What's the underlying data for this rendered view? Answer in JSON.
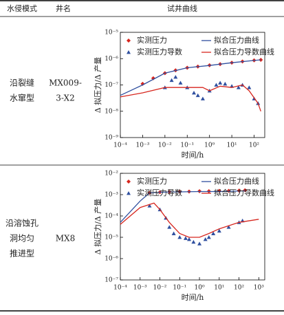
{
  "table": {
    "header": [
      "水侵模式",
      "井名",
      "试井曲线"
    ],
    "rows": [
      {
        "mode": [
          "沿裂缝",
          "水窜型"
        ],
        "well": [
          "MX009-",
          "3-X2"
        ]
      },
      {
        "mode": [
          "沿溶蚀孔",
          "洞均匀",
          "推进型"
        ],
        "well": [
          "MX8"
        ]
      }
    ]
  },
  "chart_data": [
    {
      "type": "scatter",
      "x_label": "时间/h",
      "y_label": "Δ 拟压力/Δ 产量",
      "log_x": true,
      "log_y": true,
      "xlim": [
        0.0001,
        300
      ],
      "ylim": [
        1e-09,
        1e-05
      ],
      "xticks": [
        {
          "value": 0.0001,
          "label": "10⁻⁴"
        },
        {
          "value": 0.001,
          "label": "10⁻³"
        },
        {
          "value": 0.01,
          "label": "10⁻²"
        },
        {
          "value": 0.1,
          "label": "10⁻¹"
        },
        {
          "value": 1,
          "label": "10⁰"
        },
        {
          "value": 10,
          "label": "10¹"
        },
        {
          "value": 100,
          "label": "10²"
        }
      ],
      "yticks": [
        {
          "value": 1e-09,
          "label": "10⁻⁹"
        },
        {
          "value": 1e-08,
          "label": "10⁻⁸"
        },
        {
          "value": 1e-07,
          "label": "10⁻⁷"
        },
        {
          "value": 1e-06,
          "label": "10⁻⁶"
        },
        {
          "value": 1e-05,
          "label": "10⁻⁵"
        }
      ],
      "series": [
        {
          "name": "实测压力",
          "color": "#d7261e",
          "marker": "diamond",
          "x": [
            0.001,
            0.003,
            0.01,
            0.03,
            0.1,
            0.3,
            1,
            3,
            10,
            30,
            100,
            200
          ],
          "values": [
            1.1e-07,
            1.8e-07,
            2.8e-07,
            3.6e-07,
            4.5e-07,
            5e-07,
            5.6e-07,
            6.2e-07,
            7e-07,
            7.8e-07,
            8.6e-07,
            9e-07
          ]
        },
        {
          "name": "拟合压力曲线",
          "color": "#2f4f9f",
          "marker": "line",
          "x": [
            0.0001,
            0.001,
            0.01,
            0.1,
            1,
            10,
            100,
            200
          ],
          "values": [
            4e-08,
            1e-07,
            2.8e-07,
            4.5e-07,
            5.5e-07,
            7e-07,
            8.5e-07,
            9e-07
          ]
        },
        {
          "name": "实测压力导数",
          "color": "#2f4f9f",
          "marker": "triangle",
          "x": [
            0.01,
            0.02,
            0.03,
            0.05,
            0.1,
            0.2,
            0.3,
            0.5,
            1,
            2,
            3,
            5,
            10,
            20,
            30,
            60,
            100,
            150
          ],
          "values": [
            8e-08,
            1.5e-07,
            2e-07,
            1.2e-07,
            8e-08,
            5e-08,
            4e-08,
            3e-08,
            6e-08,
            1e-07,
            1.2e-07,
            1.1e-07,
            9e-08,
            8e-08,
            1e-07,
            8e-08,
            3e-08,
            2e-08
          ]
        },
        {
          "name": "拟合压力导数曲线",
          "color": "#d7261e",
          "marker": "line",
          "x": [
            0.0001,
            0.001,
            0.01,
            0.1,
            0.5,
            1,
            3,
            10,
            30,
            60,
            150,
            200
          ],
          "values": [
            3.5e-08,
            5e-08,
            8e-08,
            8e-08,
            8e-08,
            6e-08,
            9e-08,
            8e-08,
            1e-07,
            6e-08,
            2e-08,
            1e-08
          ]
        }
      ]
    },
    {
      "type": "scatter",
      "x_label": "时间/h",
      "y_label": "Δ 拟压力/Δ 产量",
      "log_x": true,
      "log_y": true,
      "xlim": [
        0.0001,
        2000
      ],
      "ylim": [
        1e-07,
        0.01
      ],
      "xticks": [
        {
          "value": 0.0001,
          "label": "10⁻⁴"
        },
        {
          "value": 0.001,
          "label": "10⁻³"
        },
        {
          "value": 0.01,
          "label": "10⁻²"
        },
        {
          "value": 0.1,
          "label": "10⁻¹"
        },
        {
          "value": 1,
          "label": "10⁰"
        },
        {
          "value": 10,
          "label": "10¹"
        },
        {
          "value": 100,
          "label": "10²"
        },
        {
          "value": 1000,
          "label": "10³"
        }
      ],
      "yticks": [
        {
          "value": 1e-07,
          "label": "10⁻⁷"
        },
        {
          "value": 1e-06,
          "label": "10⁻⁶"
        },
        {
          "value": 1e-05,
          "label": "10⁻⁵"
        },
        {
          "value": 0.0001,
          "label": "10⁻⁴"
        },
        {
          "value": 0.001,
          "label": "10⁻³"
        },
        {
          "value": 0.01,
          "label": "10⁻²"
        }
      ],
      "series": [
        {
          "name": "实测压力",
          "color": "#d7261e",
          "marker": "diamond",
          "x": [
            0.003,
            0.01,
            0.03,
            0.1,
            0.3,
            1,
            3,
            10,
            30,
            100,
            200
          ],
          "values": [
            0.0012,
            0.0013,
            0.00135,
            0.0014,
            0.0014,
            0.00145,
            0.00145,
            0.0015,
            0.0015,
            0.00155,
            0.0016
          ]
        },
        {
          "name": "拟合压力曲线",
          "color": "#2f4f9f",
          "marker": "line",
          "x": [
            0.0001,
            0.001,
            0.003,
            0.01,
            0.1,
            1,
            10,
            200
          ],
          "values": [
            5e-05,
            0.0005,
            0.0012,
            0.0013,
            0.00135,
            0.0014,
            0.0014,
            0.0015
          ]
        },
        {
          "name": "实测压力导数",
          "color": "#2f4f9f",
          "marker": "triangle",
          "x": [
            0.003,
            0.01,
            0.02,
            0.03,
            0.05,
            0.1,
            0.2,
            0.3,
            0.5,
            1,
            2,
            3,
            5,
            10,
            30,
            100,
            150
          ],
          "values": [
            0.0003,
            0.0002,
            8e-05,
            3e-05,
            1.5e-05,
            1e-05,
            9e-06,
            8e-06,
            6e-06,
            5e-06,
            8e-06,
            1e-05,
            1.5e-05,
            2e-05,
            3e-05,
            5e-05,
            6e-05
          ]
        },
        {
          "name": "拟合压力导数曲线",
          "color": "#d7261e",
          "marker": "line",
          "x": [
            0.0001,
            0.001,
            0.005,
            0.01,
            0.03,
            0.1,
            0.3,
            1,
            3,
            10,
            100,
            1000
          ],
          "values": [
            4e-05,
            0.00025,
            0.0004,
            0.0002,
            5e-05,
            1.5e-05,
            1e-05,
            1e-05,
            1.5e-05,
            2.5e-05,
            5e-05,
            7e-05
          ]
        }
      ]
    }
  ]
}
